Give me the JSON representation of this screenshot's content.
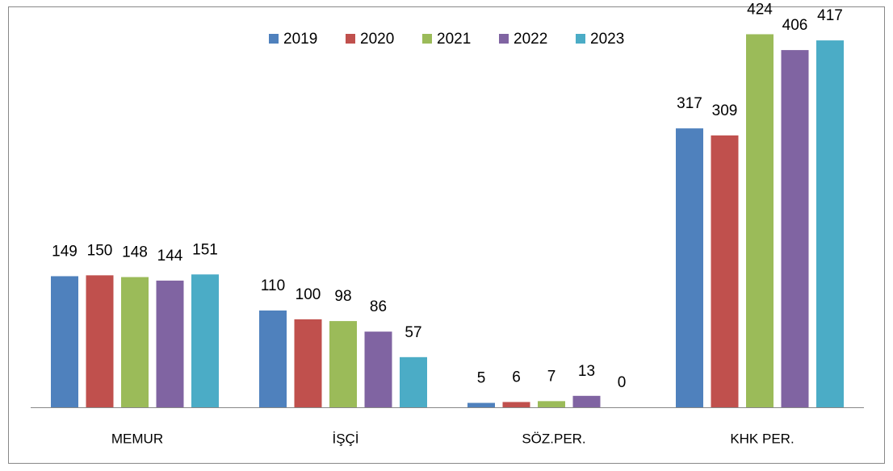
{
  "chart_data": {
    "type": "bar",
    "categories": [
      "MEMUR",
      "İŞÇİ",
      "SÖZ.PER.",
      "KHK PER."
    ],
    "series": [
      {
        "name": "2019",
        "color": "#4f81bd",
        "values": [
          149,
          110,
          5,
          317
        ]
      },
      {
        "name": "2020",
        "color": "#c0504d",
        "values": [
          150,
          100,
          6,
          309
        ]
      },
      {
        "name": "2021",
        "color": "#9bbb59",
        "values": [
          148,
          98,
          7,
          424
        ]
      },
      {
        "name": "2022",
        "color": "#8064a2",
        "values": [
          144,
          86,
          13,
          406
        ]
      },
      {
        "name": "2023",
        "color": "#4bacc6",
        "values": [
          151,
          57,
          0,
          417
        ]
      }
    ],
    "ylim": [
      0,
      440
    ],
    "legend": "top"
  }
}
